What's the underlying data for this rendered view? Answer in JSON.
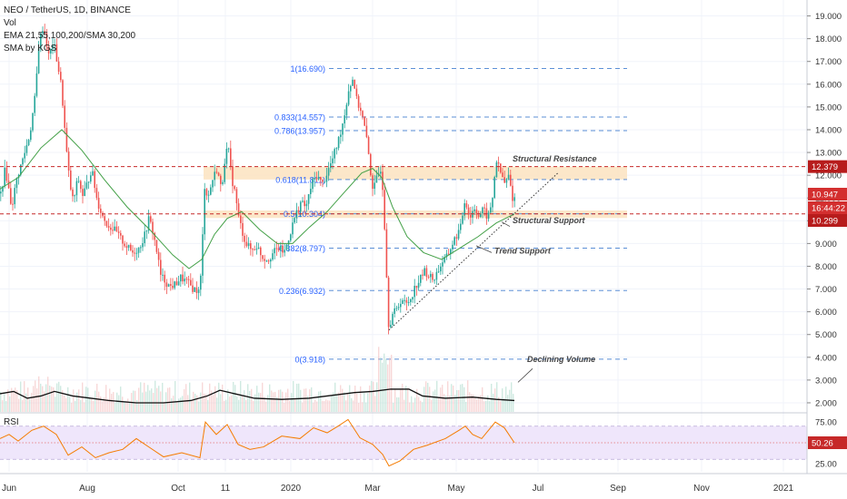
{
  "legend": {
    "symbol": "NEO / TetherUS, 1D, BINANCE",
    "vol": "Vol",
    "ema": "EMA 21,55,100,200/SMA 30,200",
    "sma": "SMA by KGS"
  },
  "rsi_label": "RSI",
  "chart_data": {
    "type": "candlestick",
    "x_ticks": [
      "Jun",
      "Aug",
      "Oct",
      "11",
      "2020",
      "Mar",
      "May",
      "Jul",
      "Sep",
      "Nov",
      "2021"
    ],
    "y_ticks": [
      "19.000",
      "18.000",
      "17.000",
      "16.000",
      "15.000",
      "14.000",
      "13.000",
      "12.000",
      "11.000",
      "10.000",
      "9.000",
      "8.000",
      "7.000",
      "6.000",
      "5.000",
      "4.000",
      "3.000",
      "2.000"
    ],
    "ylim": [
      1.6,
      19.7
    ],
    "rsi_ticks": [
      "75.00",
      "50.00",
      "25.00"
    ],
    "rsi_range": [
      15,
      85
    ],
    "rsi_value": "50.26",
    "price_labels": [
      {
        "text": "12.379",
        "value": 12.379,
        "color": "#b71c1c"
      },
      {
        "text": "10.947",
        "value": 10.947,
        "color": "#d32f2f"
      },
      {
        "text": "16:44:22",
        "value": 10.5,
        "color": "#d32f2f"
      },
      {
        "text": "10.299",
        "value": 10.299,
        "color": "#b71c1c"
      }
    ],
    "fib_levels": [
      {
        "label": "1(16.690)",
        "value": 16.69
      },
      {
        "label": "0.833(14.557)",
        "value": 14.557
      },
      {
        "label": "0.786(13.957)",
        "value": 13.957
      },
      {
        "label": "0.618(11.811)",
        "value": 11.811
      },
      {
        "label": "0.5(10.304)",
        "value": 10.304
      },
      {
        "label": "0.382(8.797)",
        "value": 8.797
      },
      {
        "label": "0.236(6.932)",
        "value": 6.932
      },
      {
        "label": "0(3.918)",
        "value": 3.918
      }
    ],
    "annotations": [
      {
        "text": "Structural Resistance",
        "value": 12.6
      },
      {
        "text": "Structural Support",
        "value": 9.9
      },
      {
        "text": "Trend Support",
        "value": 8.55
      },
      {
        "text": "Declining Volume",
        "value": 3.8
      }
    ],
    "resistance_zone": [
      11.811,
      12.379
    ],
    "support_zone": [
      10.12,
      10.45
    ],
    "resistance_line": 12.379,
    "support_line": 10.299,
    "price_path": [
      [
        0,
        11.2
      ],
      [
        5,
        12.3
      ],
      [
        12,
        10.6
      ],
      [
        18,
        11.9
      ],
      [
        25,
        12.8
      ],
      [
        32,
        13.8
      ],
      [
        38,
        15.5
      ],
      [
        42,
        17.8
      ],
      [
        47,
        18.6
      ],
      [
        53,
        17.2
      ],
      [
        58,
        17.9
      ],
      [
        63,
        16.8
      ],
      [
        67,
        15.8
      ],
      [
        72,
        13.2
      ],
      [
        76,
        11.6
      ],
      [
        80,
        10.8
      ],
      [
        85,
        11.9
      ],
      [
        90,
        11.1
      ],
      [
        95,
        11.6
      ],
      [
        100,
        12.3
      ],
      [
        106,
        10.9
      ],
      [
        112,
        10.2
      ],
      [
        118,
        9.8
      ],
      [
        125,
        9.6
      ],
      [
        132,
        9.2
      ],
      [
        138,
        8.9
      ],
      [
        145,
        8.6
      ],
      [
        152,
        8.8
      ],
      [
        158,
        9.3
      ],
      [
        163,
        10.1
      ],
      [
        167,
        9.6
      ],
      [
        172,
        8.6
      ],
      [
        176,
        7.6
      ],
      [
        180,
        7.4
      ],
      [
        186,
        7.1
      ],
      [
        192,
        7.2
      ],
      [
        198,
        7.5
      ],
      [
        205,
        7.3
      ],
      [
        212,
        7.0
      ],
      [
        218,
        6.9
      ],
      [
        221,
        7.8
      ],
      [
        224,
        11.6
      ],
      [
        228,
        11.0
      ],
      [
        233,
        11.8
      ],
      [
        238,
        12.3
      ],
      [
        243,
        11.3
      ],
      [
        246,
        12.6
      ],
      [
        250,
        13.3
      ],
      [
        254,
        11.9
      ],
      [
        258,
        11.2
      ],
      [
        262,
        10.1
      ],
      [
        266,
        9.5
      ],
      [
        270,
        9.0
      ],
      [
        276,
        8.7
      ],
      [
        282,
        8.9
      ],
      [
        288,
        8.4
      ],
      [
        294,
        8.3
      ],
      [
        300,
        8.6
      ],
      [
        306,
        8.8
      ],
      [
        312,
        8.6
      ],
      [
        318,
        9.4
      ],
      [
        324,
        10.2
      ],
      [
        330,
        10.8
      ],
      [
        336,
        10.6
      ],
      [
        342,
        11.6
      ],
      [
        348,
        12.0
      ],
      [
        354,
        11.6
      ],
      [
        360,
        12.2
      ],
      [
        366,
        12.8
      ],
      [
        372,
        13.6
      ],
      [
        378,
        14.6
      ],
      [
        383,
        15.8
      ],
      [
        388,
        16.3
      ],
      [
        392,
        15.2
      ],
      [
        396,
        14.9
      ],
      [
        400,
        14.2
      ],
      [
        404,
        13.2
      ],
      [
        407,
        12.1
      ],
      [
        410,
        11.3
      ],
      [
        414,
        11.9
      ],
      [
        418,
        12.3
      ],
      [
        421,
        11.2
      ],
      [
        424,
        8.2
      ],
      [
        427,
        5.3
      ],
      [
        431,
        5.9
      ],
      [
        436,
        6.1
      ],
      [
        441,
        6.6
      ],
      [
        446,
        6.3
      ],
      [
        451,
        6.6
      ],
      [
        456,
        7.1
      ],
      [
        461,
        7.4
      ],
      [
        466,
        7.8
      ],
      [
        471,
        7.6
      ],
      [
        476,
        7.4
      ],
      [
        481,
        7.8
      ],
      [
        486,
        8.2
      ],
      [
        491,
        8.4
      ],
      [
        496,
        8.9
      ],
      [
        501,
        9.3
      ],
      [
        506,
        9.7
      ],
      [
        511,
        11.0
      ],
      [
        516,
        10.1
      ],
      [
        521,
        10.6
      ],
      [
        526,
        10.2
      ],
      [
        531,
        10.5
      ],
      [
        536,
        10.1
      ],
      [
        541,
        10.9
      ],
      [
        545,
        12.7
      ],
      [
        550,
        12.1
      ],
      [
        555,
        11.6
      ],
      [
        559,
        12.0
      ],
      [
        563,
        11.0
      ],
      [
        566,
        11.0
      ]
    ],
    "ema_path": [
      [
        0,
        11.4
      ],
      [
        20,
        11.9
      ],
      [
        45,
        13.2
      ],
      [
        68,
        14.0
      ],
      [
        90,
        13.1
      ],
      [
        115,
        11.8
      ],
      [
        140,
        10.6
      ],
      [
        165,
        9.6
      ],
      [
        190,
        8.5
      ],
      [
        208,
        7.9
      ],
      [
        222,
        8.3
      ],
      [
        236,
        9.4
      ],
      [
        250,
        10.1
      ],
      [
        266,
        10.4
      ],
      [
        286,
        9.6
      ],
      [
        305,
        9.0
      ],
      [
        322,
        9.0
      ],
      [
        340,
        9.7
      ],
      [
        360,
        10.4
      ],
      [
        380,
        11.3
      ],
      [
        398,
        12.1
      ],
      [
        410,
        12.3
      ],
      [
        420,
        11.9
      ],
      [
        432,
        10.6
      ],
      [
        448,
        9.3
      ],
      [
        466,
        8.6
      ],
      [
        486,
        8.3
      ],
      [
        506,
        8.8
      ],
      [
        526,
        9.3
      ],
      [
        546,
        9.9
      ],
      [
        566,
        10.3
      ]
    ],
    "volume_ma_path": [
      [
        0,
        2.4
      ],
      [
        15,
        2.5
      ],
      [
        30,
        2.2
      ],
      [
        45,
        2.3
      ],
      [
        60,
        2.5
      ],
      [
        80,
        2.3
      ],
      [
        100,
        2.2
      ],
      [
        120,
        2.1
      ],
      [
        150,
        2.0
      ],
      [
        180,
        2.0
      ],
      [
        210,
        2.1
      ],
      [
        228,
        2.3
      ],
      [
        242,
        2.55
      ],
      [
        258,
        2.4
      ],
      [
        280,
        2.2
      ],
      [
        310,
        2.15
      ],
      [
        340,
        2.2
      ],
      [
        370,
        2.35
      ],
      [
        390,
        2.45
      ],
      [
        410,
        2.5
      ],
      [
        430,
        2.6
      ],
      [
        450,
        2.6
      ],
      [
        465,
        2.3
      ],
      [
        490,
        2.2
      ],
      [
        520,
        2.25
      ],
      [
        546,
        2.15
      ],
      [
        566,
        2.1
      ]
    ],
    "rsi_path": [
      [
        0,
        55
      ],
      [
        10,
        60
      ],
      [
        20,
        52
      ],
      [
        35,
        65
      ],
      [
        48,
        70
      ],
      [
        62,
        60
      ],
      [
        75,
        35
      ],
      [
        90,
        45
      ],
      [
        105,
        32
      ],
      [
        120,
        38
      ],
      [
        135,
        42
      ],
      [
        150,
        55
      ],
      [
        165,
        44
      ],
      [
        180,
        33
      ],
      [
        200,
        38
      ],
      [
        220,
        32
      ],
      [
        226,
        75
      ],
      [
        238,
        60
      ],
      [
        250,
        72
      ],
      [
        262,
        48
      ],
      [
        275,
        42
      ],
      [
        290,
        45
      ],
      [
        310,
        58
      ],
      [
        330,
        55
      ],
      [
        345,
        68
      ],
      [
        360,
        62
      ],
      [
        372,
        70
      ],
      [
        383,
        78
      ],
      [
        396,
        56
      ],
      [
        410,
        48
      ],
      [
        421,
        36
      ],
      [
        428,
        22
      ],
      [
        440,
        28
      ],
      [
        455,
        42
      ],
      [
        470,
        47
      ],
      [
        490,
        55
      ],
      [
        505,
        65
      ],
      [
        512,
        70
      ],
      [
        520,
        60
      ],
      [
        530,
        55
      ],
      [
        545,
        75
      ],
      [
        555,
        68
      ],
      [
        566,
        50
      ]
    ]
  }
}
